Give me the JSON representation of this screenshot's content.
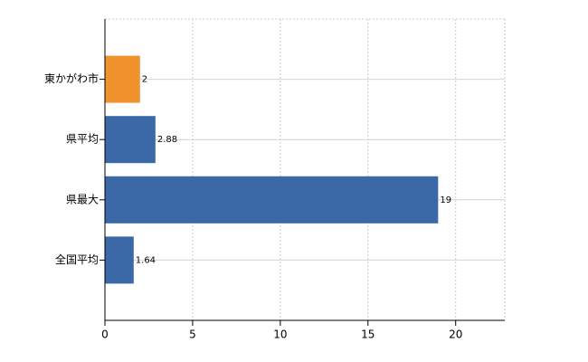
{
  "chart_data": {
    "type": "barh",
    "categories": [
      "東かがわ市",
      "県平均",
      "県最大",
      "全国平均"
    ],
    "values": [
      2,
      2.88,
      19,
      1.64
    ],
    "colors": [
      "#f0922e",
      "#3b69a8",
      "#3b69a8",
      "#3b69a8"
    ],
    "xlim": [
      0,
      22.8
    ],
    "xticks": [
      0,
      5,
      10,
      15,
      20
    ],
    "grid": true
  }
}
